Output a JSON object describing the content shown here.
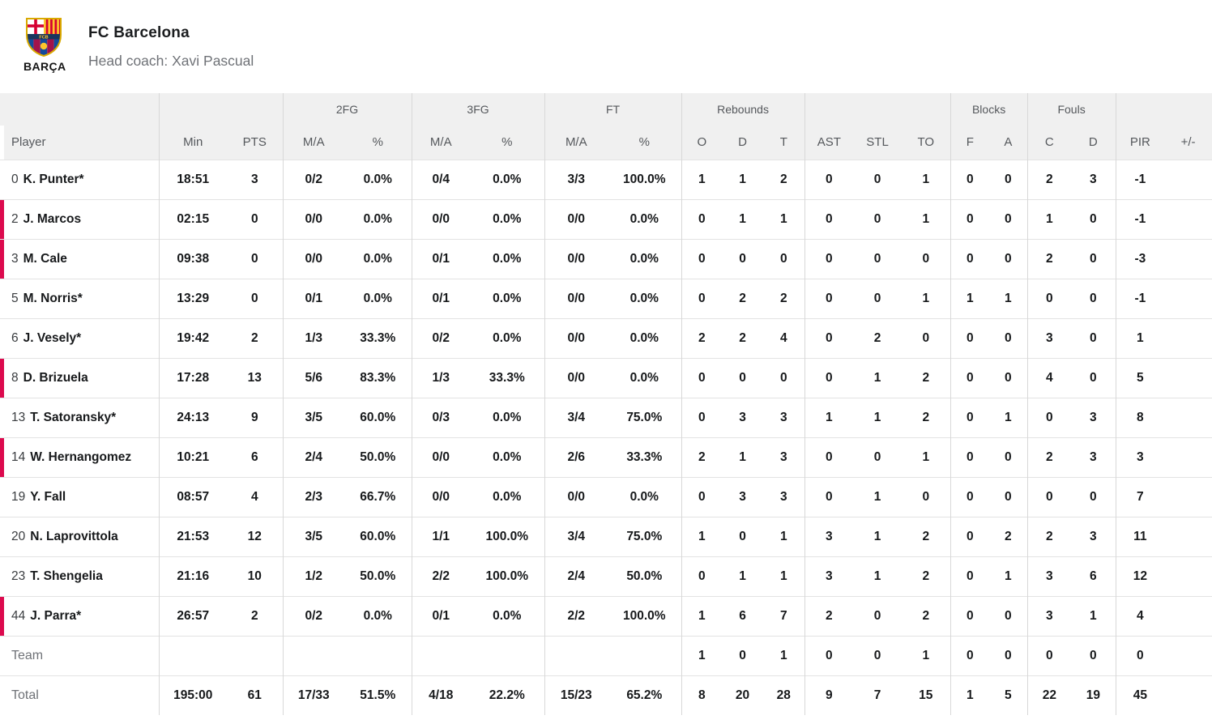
{
  "team_header": {
    "name": "FC Barcelona",
    "coach": "Head coach: Xavi Pascual",
    "logo_caption": "BARÇA",
    "crest_monogram": "FCB"
  },
  "colors": {
    "accent_red": "#dc0a4e",
    "header_bg": "#f0f0f0",
    "header_text": "#55585c",
    "group_border": "#d8d8d8",
    "row_border": "#e3e3e3",
    "body_text": "#17191b",
    "muted_text": "#6f7277",
    "number_text": "#3a3d40",
    "title_text": "#1b1d1f"
  },
  "table": {
    "group_headers": [
      {
        "label": "",
        "span": 1
      },
      {
        "label": "",
        "span": 2
      },
      {
        "label": "2FG",
        "span": 2
      },
      {
        "label": "3FG",
        "span": 2
      },
      {
        "label": "FT",
        "span": 2
      },
      {
        "label": "Rebounds",
        "span": 3
      },
      {
        "label": "",
        "span": 3
      },
      {
        "label": "Blocks",
        "span": 2
      },
      {
        "label": "Fouls",
        "span": 2
      },
      {
        "label": "",
        "span": 2
      }
    ],
    "column_headers": [
      "Player",
      "Min",
      "PTS",
      "M/A",
      "%",
      "M/A",
      "%",
      "M/A",
      "%",
      "O",
      "D",
      "T",
      "AST",
      "STL",
      "TO",
      "F",
      "A",
      "C",
      "D",
      "PIR",
      "+/-"
    ],
    "rows": [
      {
        "number": "0",
        "name": "K. Punter*",
        "marked": false,
        "stats": [
          "18:51",
          "3",
          "0/2",
          "0.0%",
          "0/4",
          "0.0%",
          "3/3",
          "100.0%",
          "1",
          "1",
          "2",
          "0",
          "0",
          "1",
          "0",
          "0",
          "2",
          "3",
          "-1",
          ""
        ]
      },
      {
        "number": "2",
        "name": "J. Marcos",
        "marked": true,
        "stats": [
          "02:15",
          "0",
          "0/0",
          "0.0%",
          "0/0",
          "0.0%",
          "0/0",
          "0.0%",
          "0",
          "1",
          "1",
          "0",
          "0",
          "1",
          "0",
          "0",
          "1",
          "0",
          "-1",
          ""
        ]
      },
      {
        "number": "3",
        "name": "M. Cale",
        "marked": true,
        "stats": [
          "09:38",
          "0",
          "0/0",
          "0.0%",
          "0/1",
          "0.0%",
          "0/0",
          "0.0%",
          "0",
          "0",
          "0",
          "0",
          "0",
          "0",
          "0",
          "0",
          "2",
          "0",
          "-3",
          ""
        ]
      },
      {
        "number": "5",
        "name": "M. Norris*",
        "marked": false,
        "stats": [
          "13:29",
          "0",
          "0/1",
          "0.0%",
          "0/1",
          "0.0%",
          "0/0",
          "0.0%",
          "0",
          "2",
          "2",
          "0",
          "0",
          "1",
          "1",
          "1",
          "0",
          "0",
          "-1",
          ""
        ]
      },
      {
        "number": "6",
        "name": "J. Vesely*",
        "marked": false,
        "stats": [
          "19:42",
          "2",
          "1/3",
          "33.3%",
          "0/2",
          "0.0%",
          "0/0",
          "0.0%",
          "2",
          "2",
          "4",
          "0",
          "2",
          "0",
          "0",
          "0",
          "3",
          "0",
          "1",
          ""
        ]
      },
      {
        "number": "8",
        "name": "D. Brizuela",
        "marked": true,
        "stats": [
          "17:28",
          "13",
          "5/6",
          "83.3%",
          "1/3",
          "33.3%",
          "0/0",
          "0.0%",
          "0",
          "0",
          "0",
          "0",
          "1",
          "2",
          "0",
          "0",
          "4",
          "0",
          "5",
          ""
        ]
      },
      {
        "number": "13",
        "name": "T. Satoransky*",
        "marked": false,
        "stats": [
          "24:13",
          "9",
          "3/5",
          "60.0%",
          "0/3",
          "0.0%",
          "3/4",
          "75.0%",
          "0",
          "3",
          "3",
          "1",
          "1",
          "2",
          "0",
          "1",
          "0",
          "3",
          "8",
          ""
        ]
      },
      {
        "number": "14",
        "name": "W. Hernangomez",
        "marked": true,
        "stats": [
          "10:21",
          "6",
          "2/4",
          "50.0%",
          "0/0",
          "0.0%",
          "2/6",
          "33.3%",
          "2",
          "1",
          "3",
          "0",
          "0",
          "1",
          "0",
          "0",
          "2",
          "3",
          "3",
          ""
        ]
      },
      {
        "number": "19",
        "name": "Y. Fall",
        "marked": false,
        "stats": [
          "08:57",
          "4",
          "2/3",
          "66.7%",
          "0/0",
          "0.0%",
          "0/0",
          "0.0%",
          "0",
          "3",
          "3",
          "0",
          "1",
          "0",
          "0",
          "0",
          "0",
          "0",
          "7",
          ""
        ]
      },
      {
        "number": "20",
        "name": "N. Laprovittola",
        "marked": false,
        "stats": [
          "21:53",
          "12",
          "3/5",
          "60.0%",
          "1/1",
          "100.0%",
          "3/4",
          "75.0%",
          "1",
          "0",
          "1",
          "3",
          "1",
          "2",
          "0",
          "2",
          "2",
          "3",
          "11",
          ""
        ]
      },
      {
        "number": "23",
        "name": "T. Shengelia",
        "marked": false,
        "stats": [
          "21:16",
          "10",
          "1/2",
          "50.0%",
          "2/2",
          "100.0%",
          "2/4",
          "50.0%",
          "0",
          "1",
          "1",
          "3",
          "1",
          "2",
          "0",
          "1",
          "3",
          "6",
          "12",
          ""
        ]
      },
      {
        "number": "44",
        "name": "J. Parra*",
        "marked": true,
        "stats": [
          "26:57",
          "2",
          "0/2",
          "0.0%",
          "0/1",
          "0.0%",
          "2/2",
          "100.0%",
          "1",
          "6",
          "7",
          "2",
          "0",
          "2",
          "0",
          "0",
          "3",
          "1",
          "4",
          ""
        ]
      },
      {
        "label": "Team",
        "stats": [
          "",
          "",
          "",
          "",
          "",
          "",
          "",
          "",
          "1",
          "0",
          "1",
          "0",
          "0",
          "1",
          "0",
          "0",
          "0",
          "0",
          "0",
          ""
        ]
      },
      {
        "label": "Total",
        "stats": [
          "195:00",
          "61",
          "17/33",
          "51.5%",
          "4/18",
          "22.2%",
          "15/23",
          "65.2%",
          "8",
          "20",
          "28",
          "9",
          "7",
          "15",
          "1",
          "5",
          "22",
          "19",
          "45",
          ""
        ]
      }
    ]
  }
}
